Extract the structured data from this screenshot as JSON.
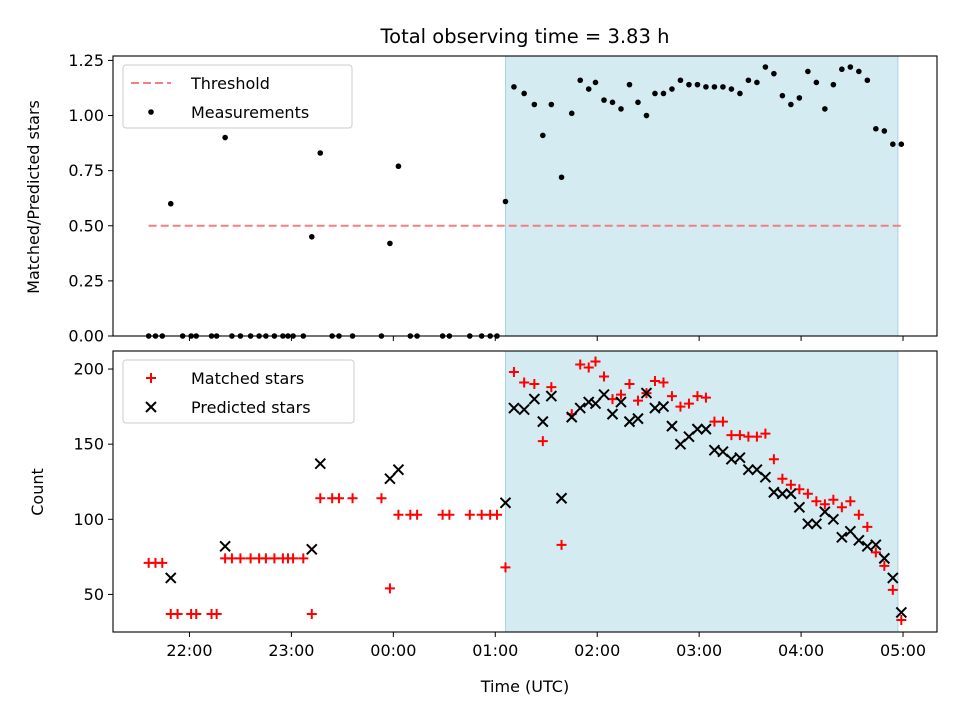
{
  "figure": {
    "title": "Total observing time = 3.83 h",
    "xlabel": "Time (UTC)"
  },
  "chart_data": [
    {
      "type": "scatter",
      "panel": "top",
      "ylabel": "Matched/Predicted stars",
      "ylim": [
        0,
        1.27
      ],
      "yticks": [
        0.0,
        0.25,
        0.5,
        0.75,
        1.0,
        1.25
      ],
      "ytick_labels": [
        "0.00",
        "0.25",
        "0.50",
        "0.75",
        "1.00",
        "1.25"
      ],
      "xlim": [
        "21:15",
        "05:20"
      ],
      "xticks": [
        "22:00",
        "23:00",
        "00:00",
        "01:00",
        "02:00",
        "03:00",
        "04:00",
        "05:00"
      ],
      "xtick_labels_visible": false,
      "highlight_span": [
        "01:06",
        "04:57"
      ],
      "highlight_color": "#d4ebf2",
      "legend_position": "upper-left",
      "legend": [
        {
          "label": "Threshold",
          "style": "dashed-line",
          "color": "#f08080"
        },
        {
          "label": "Measurements",
          "style": "dot",
          "color": "#000000"
        }
      ],
      "threshold": 0.5,
      "series": [
        {
          "name": "Measurements",
          "color": "#000000",
          "marker": "dot",
          "points": [
            [
              "21:36",
              0.0
            ],
            [
              "21:40",
              0.0
            ],
            [
              "21:44",
              0.0
            ],
            [
              "21:49",
              0.6
            ],
            [
              "21:56",
              0.0
            ],
            [
              "22:01",
              0.0
            ],
            [
              "22:04",
              0.0
            ],
            [
              "22:13",
              0.0
            ],
            [
              "22:16",
              0.0
            ],
            [
              "22:21",
              0.9
            ],
            [
              "22:25",
              0.0
            ],
            [
              "22:30",
              0.0
            ],
            [
              "22:36",
              0.0
            ],
            [
              "22:41",
              0.0
            ],
            [
              "22:45",
              0.0
            ],
            [
              "22:50",
              0.0
            ],
            [
              "22:55",
              0.0
            ],
            [
              "22:58",
              0.0
            ],
            [
              "23:01",
              0.0
            ],
            [
              "23:07",
              0.0
            ],
            [
              "23:12",
              0.45
            ],
            [
              "23:17",
              0.83
            ],
            [
              "23:24",
              0.0
            ],
            [
              "23:28",
              0.0
            ],
            [
              "23:36",
              0.0
            ],
            [
              "23:53",
              0.0
            ],
            [
              "23:58",
              0.42
            ],
            [
              "00:03",
              0.77
            ],
            [
              "00:10",
              0.0
            ],
            [
              "00:14",
              0.0
            ],
            [
              "00:29",
              0.0
            ],
            [
              "00:33",
              0.0
            ],
            [
              "00:45",
              0.0
            ],
            [
              "00:52",
              0.0
            ],
            [
              "00:57",
              0.0
            ],
            [
              "01:01",
              0.0
            ],
            [
              "01:06",
              0.61
            ],
            [
              "01:11",
              1.13
            ],
            [
              "01:17",
              1.1
            ],
            [
              "01:23",
              1.05
            ],
            [
              "01:28",
              0.91
            ],
            [
              "01:33",
              1.05
            ],
            [
              "01:39",
              0.72
            ],
            [
              "01:45",
              1.01
            ],
            [
              "01:50",
              1.16
            ],
            [
              "01:55",
              1.12
            ],
            [
              "01:59",
              1.15
            ],
            [
              "02:04",
              1.07
            ],
            [
              "02:09",
              1.06
            ],
            [
              "02:14",
              1.03
            ],
            [
              "02:19",
              1.14
            ],
            [
              "02:24",
              1.06
            ],
            [
              "02:29",
              1.0
            ],
            [
              "02:34",
              1.1
            ],
            [
              "02:39",
              1.1
            ],
            [
              "02:44",
              1.12
            ],
            [
              "02:49",
              1.16
            ],
            [
              "02:54",
              1.14
            ],
            [
              "02:59",
              1.14
            ],
            [
              "03:04",
              1.13
            ],
            [
              "03:09",
              1.13
            ],
            [
              "03:14",
              1.13
            ],
            [
              "03:19",
              1.12
            ],
            [
              "03:24",
              1.1
            ],
            [
              "03:29",
              1.16
            ],
            [
              "03:34",
              1.15
            ],
            [
              "03:39",
              1.22
            ],
            [
              "03:44",
              1.19
            ],
            [
              "03:49",
              1.09
            ],
            [
              "03:54",
              1.05
            ],
            [
              "03:59",
              1.08
            ],
            [
              "04:04",
              1.2
            ],
            [
              "04:09",
              1.15
            ],
            [
              "04:14",
              1.03
            ],
            [
              "04:19",
              1.14
            ],
            [
              "04:24",
              1.21
            ],
            [
              "04:29",
              1.22
            ],
            [
              "04:34",
              1.2
            ],
            [
              "04:39",
              1.16
            ],
            [
              "04:44",
              0.94
            ],
            [
              "04:49",
              0.93
            ],
            [
              "04:54",
              0.87
            ],
            [
              "04:59",
              0.87
            ]
          ]
        }
      ]
    },
    {
      "type": "scatter",
      "panel": "bottom",
      "ylabel": "Count",
      "ylim": [
        25,
        212
      ],
      "yticks": [
        50,
        100,
        150,
        200
      ],
      "ytick_labels": [
        "50",
        "100",
        "150",
        "200"
      ],
      "xlim": [
        "21:15",
        "05:20"
      ],
      "xticks": [
        "22:00",
        "23:00",
        "00:00",
        "01:00",
        "02:00",
        "03:00",
        "04:00",
        "05:00"
      ],
      "xtick_labels": [
        "22:00",
        "23:00",
        "00:00",
        "01:00",
        "02:00",
        "03:00",
        "04:00",
        "05:00"
      ],
      "highlight_span": [
        "01:06",
        "04:57"
      ],
      "highlight_color": "#d4ebf2",
      "legend_position": "upper-left",
      "legend": [
        {
          "label": "Matched stars",
          "style": "plus",
          "color": "#ff0000"
        },
        {
          "label": "Predicted stars",
          "style": "cross",
          "color": "#000000"
        }
      ],
      "series": [
        {
          "name": "Matched stars",
          "color": "#ff0000",
          "marker": "plus",
          "points": [
            [
              "21:36",
              71
            ],
            [
              "21:40",
              71
            ],
            [
              "21:44",
              71
            ],
            [
              "21:49",
              37
            ],
            [
              "21:53",
              37
            ],
            [
              "22:01",
              37
            ],
            [
              "22:04",
              37
            ],
            [
              "22:13",
              37
            ],
            [
              "22:16",
              37
            ],
            [
              "22:21",
              74
            ],
            [
              "22:25",
              74
            ],
            [
              "22:30",
              74
            ],
            [
              "22:36",
              74
            ],
            [
              "22:41",
              74
            ],
            [
              "22:45",
              74
            ],
            [
              "22:50",
              74
            ],
            [
              "22:55",
              74
            ],
            [
              "22:58",
              74
            ],
            [
              "23:01",
              74
            ],
            [
              "23:07",
              74
            ],
            [
              "23:12",
              37
            ],
            [
              "23:17",
              114
            ],
            [
              "23:24",
              114
            ],
            [
              "23:28",
              114
            ],
            [
              "23:36",
              114
            ],
            [
              "23:53",
              114
            ],
            [
              "23:58",
              54
            ],
            [
              "00:03",
              103
            ],
            [
              "00:10",
              103
            ],
            [
              "00:14",
              103
            ],
            [
              "00:29",
              103
            ],
            [
              "00:33",
              103
            ],
            [
              "00:45",
              103
            ],
            [
              "00:52",
              103
            ],
            [
              "00:57",
              103
            ],
            [
              "01:01",
              103
            ],
            [
              "01:06",
              68
            ],
            [
              "01:11",
              198
            ],
            [
              "01:17",
              191
            ],
            [
              "01:23",
              190
            ],
            [
              "01:28",
              152
            ],
            [
              "01:33",
              188
            ],
            [
              "01:39",
              83
            ],
            [
              "01:45",
              170
            ],
            [
              "01:50",
              203
            ],
            [
              "01:55",
              201
            ],
            [
              "01:59",
              205
            ],
            [
              "02:04",
              195
            ],
            [
              "02:09",
              180
            ],
            [
              "02:14",
              183
            ],
            [
              "02:19",
              190
            ],
            [
              "02:24",
              179
            ],
            [
              "02:29",
              184
            ],
            [
              "02:34",
              192
            ],
            [
              "02:39",
              191
            ],
            [
              "02:44",
              182
            ],
            [
              "02:49",
              175
            ],
            [
              "02:54",
              177
            ],
            [
              "02:59",
              182
            ],
            [
              "03:04",
              181
            ],
            [
              "03:09",
              165
            ],
            [
              "03:14",
              165
            ],
            [
              "03:19",
              156
            ],
            [
              "03:24",
              156
            ],
            [
              "03:29",
              155
            ],
            [
              "03:34",
              155
            ],
            [
              "03:39",
              157
            ],
            [
              "03:44",
              140
            ],
            [
              "03:49",
              127
            ],
            [
              "03:54",
              123
            ],
            [
              "03:59",
              120
            ],
            [
              "04:04",
              117
            ],
            [
              "04:09",
              112
            ],
            [
              "04:14",
              110
            ],
            [
              "04:19",
              113
            ],
            [
              "04:24",
              108
            ],
            [
              "04:29",
              112
            ],
            [
              "04:34",
              103
            ],
            [
              "04:39",
              95
            ],
            [
              "04:44",
              78
            ],
            [
              "04:49",
              69
            ],
            [
              "04:54",
              53
            ],
            [
              "04:59",
              33
            ]
          ]
        },
        {
          "name": "Predicted stars",
          "color": "#000000",
          "marker": "cross",
          "points": [
            [
              "21:49",
              61
            ],
            [
              "22:21",
              82
            ],
            [
              "23:12",
              80
            ],
            [
              "23:17",
              137
            ],
            [
              "23:58",
              127
            ],
            [
              "00:03",
              133
            ],
            [
              "01:06",
              111
            ],
            [
              "01:11",
              174
            ],
            [
              "01:17",
              173
            ],
            [
              "01:23",
              180
            ],
            [
              "01:28",
              165
            ],
            [
              "01:33",
              182
            ],
            [
              "01:39",
              114
            ],
            [
              "01:45",
              168
            ],
            [
              "01:50",
              174
            ],
            [
              "01:55",
              178
            ],
            [
              "01:59",
              177
            ],
            [
              "02:04",
              183
            ],
            [
              "02:09",
              170
            ],
            [
              "02:14",
              178
            ],
            [
              "02:19",
              165
            ],
            [
              "02:24",
              167
            ],
            [
              "02:29",
              184
            ],
            [
              "02:34",
              174
            ],
            [
              "02:39",
              175
            ],
            [
              "02:44",
              162
            ],
            [
              "02:49",
              150
            ],
            [
              "02:54",
              155
            ],
            [
              "02:59",
              160
            ],
            [
              "03:04",
              160
            ],
            [
              "03:09",
              146
            ],
            [
              "03:14",
              145
            ],
            [
              "03:19",
              140
            ],
            [
              "03:24",
              141
            ],
            [
              "03:29",
              133
            ],
            [
              "03:34",
              133
            ],
            [
              "03:39",
              128
            ],
            [
              "03:44",
              118
            ],
            [
              "03:49",
              117
            ],
            [
              "03:54",
              117
            ],
            [
              "03:59",
              108
            ],
            [
              "04:04",
              97
            ],
            [
              "04:09",
              97
            ],
            [
              "04:14",
              105
            ],
            [
              "04:19",
              100
            ],
            [
              "04:24",
              88
            ],
            [
              "04:29",
              92
            ],
            [
              "04:34",
              86
            ],
            [
              "04:39",
              82
            ],
            [
              "04:44",
              83
            ],
            [
              "04:49",
              74
            ],
            [
              "04:54",
              61
            ],
            [
              "04:59",
              38
            ]
          ]
        }
      ]
    }
  ]
}
